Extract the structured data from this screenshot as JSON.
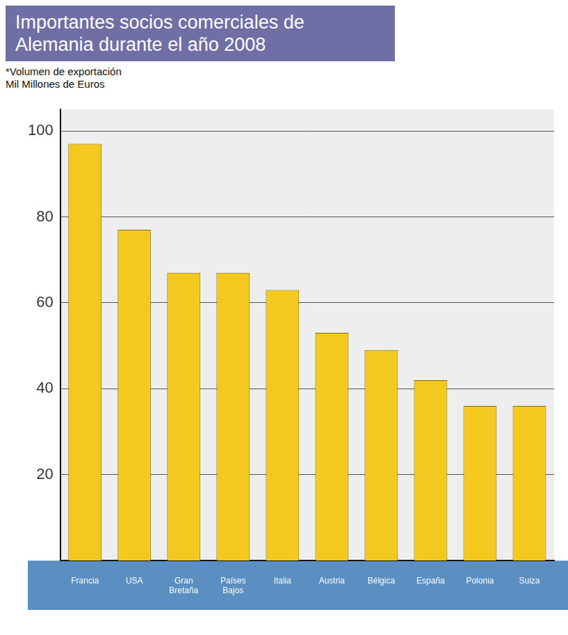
{
  "chart_data": {
    "type": "bar",
    "title": "Importantes socios comerciales de Alemania durante el año 2008",
    "subtitle": [
      "*Volumen de exportación",
      "Mil Millones de Euros"
    ],
    "categories": [
      "Francia",
      "USA",
      "Gran Bretaña",
      "Países Bajos",
      "Italia",
      "Austria",
      "Bélgica",
      "España",
      "Polonia",
      "Suiza"
    ],
    "values": [
      97,
      77,
      67,
      67,
      63,
      53,
      49,
      42,
      36,
      36
    ],
    "color": "#f3c81f",
    "ylim": [
      0,
      105
    ],
    "yticks": [
      20,
      40,
      60,
      80,
      100
    ],
    "grid": true
  }
}
